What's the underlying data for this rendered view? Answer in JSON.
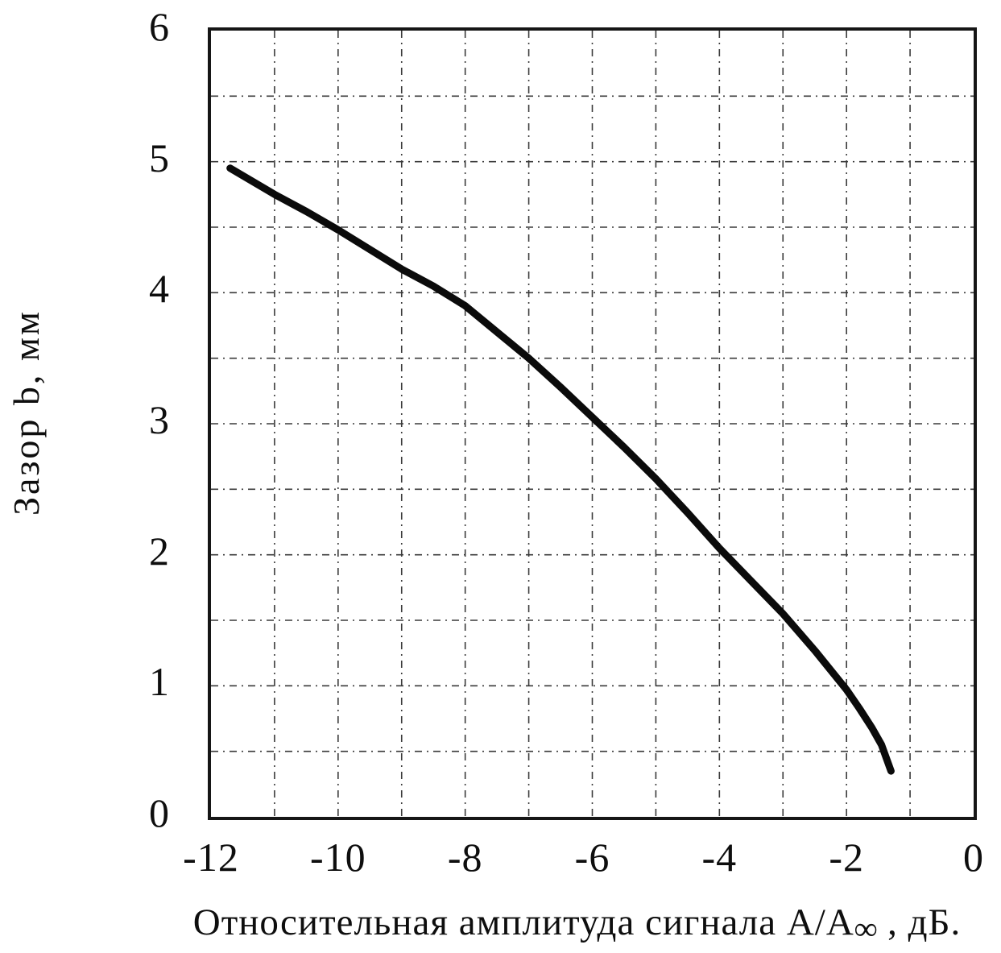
{
  "chart_data": {
    "type": "line",
    "title": "",
    "xlabel_main": "Относительная амплитуда сигнала А/А",
    "xlabel_sub": "∞",
    "xlabel_tail": " , дБ.",
    "ylabel": "Зазор b, мм",
    "xlim": [
      -12,
      0
    ],
    "ylim": [
      0,
      6
    ],
    "x_grid_step": 1,
    "y_grid_step": 0.5,
    "grid_style": "dash-dot",
    "legend_position": "none",
    "x_ticks": [
      {
        "v": -12,
        "label": "-12"
      },
      {
        "v": -10,
        "label": "-10"
      },
      {
        "v": -8,
        "label": "-8"
      },
      {
        "v": -6,
        "label": "-6"
      },
      {
        "v": -4,
        "label": "-4"
      },
      {
        "v": -2,
        "label": "-2"
      },
      {
        "v": 0,
        "label": "0"
      }
    ],
    "y_ticks": [
      {
        "v": 0,
        "label": "0"
      },
      {
        "v": 1,
        "label": "1"
      },
      {
        "v": 2,
        "label": "2"
      },
      {
        "v": 3,
        "label": "3"
      },
      {
        "v": 4,
        "label": "4"
      },
      {
        "v": 5,
        "label": "5"
      },
      {
        "v": 6,
        "label": "6"
      }
    ],
    "series": [
      {
        "points": [
          [
            -11.7,
            4.95
          ],
          [
            -11.0,
            4.75
          ],
          [
            -10.5,
            4.62
          ],
          [
            -10.0,
            4.48
          ],
          [
            -9.5,
            4.33
          ],
          [
            -9.0,
            4.18
          ],
          [
            -8.5,
            4.05
          ],
          [
            -8.0,
            3.9
          ],
          [
            -7.5,
            3.7
          ],
          [
            -7.0,
            3.5
          ],
          [
            -6.5,
            3.28
          ],
          [
            -6.0,
            3.05
          ],
          [
            -5.5,
            2.82
          ],
          [
            -5.0,
            2.58
          ],
          [
            -4.5,
            2.32
          ],
          [
            -4.0,
            2.05
          ],
          [
            -3.5,
            1.8
          ],
          [
            -3.0,
            1.55
          ],
          [
            -2.5,
            1.27
          ],
          [
            -2.0,
            0.97
          ],
          [
            -1.8,
            0.83
          ],
          [
            -1.6,
            0.68
          ],
          [
            -1.45,
            0.55
          ],
          [
            -1.3,
            0.35
          ]
        ]
      }
    ]
  }
}
